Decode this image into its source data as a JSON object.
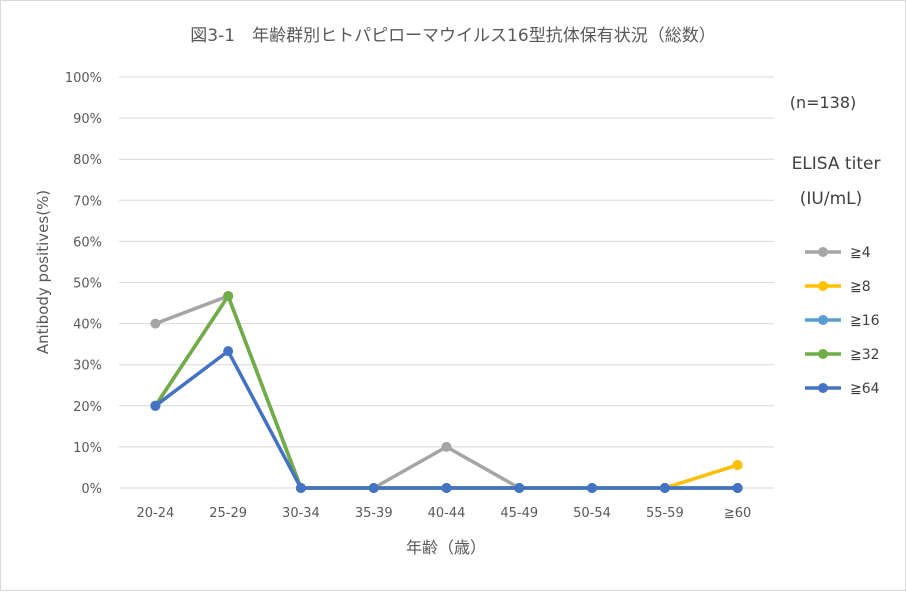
{
  "chart_data": {
    "type": "line",
    "title": "図3-1　年齢群別ヒトパピローマウイルス16型抗体保有状況（総数）",
    "xlabel": "年齢（歳）",
    "ylabel": "Antibody positives(%)",
    "note": "(n=138)",
    "legend_title_line1": "ELISA titer",
    "legend_title_line2": "(IU/mL)",
    "legend_position": "right",
    "grid": true,
    "ylim": [
      0,
      100
    ],
    "y_ticks": [
      "0%",
      "10%",
      "20%",
      "30%",
      "40%",
      "50%",
      "60%",
      "70%",
      "80%",
      "90%",
      "100%"
    ],
    "categories": [
      "20-24",
      "25-29",
      "30-34",
      "35-39",
      "40-44",
      "45-49",
      "50-54",
      "55-59",
      "≧60"
    ],
    "series": [
      {
        "name": "≧4",
        "color": "#a5a5a5",
        "values": [
          40,
          46.7,
          0,
          0,
          10,
          0,
          0,
          0,
          5.6
        ]
      },
      {
        "name": "≧8",
        "color": "#ffc000",
        "values": [
          20,
          46.7,
          0,
          0,
          0,
          0,
          0,
          0,
          5.6
        ]
      },
      {
        "name": "≧16",
        "color": "#5b9bd5",
        "values": [
          20,
          46.7,
          0,
          0,
          0,
          0,
          0,
          0,
          0
        ]
      },
      {
        "name": "≧32",
        "color": "#70ad47",
        "values": [
          20,
          46.7,
          0,
          0,
          0,
          0,
          0,
          0,
          0
        ]
      },
      {
        "name": "≧64",
        "color": "#4472c4",
        "values": [
          20,
          33.3,
          0,
          0,
          0,
          0,
          0,
          0,
          0
        ]
      }
    ]
  }
}
